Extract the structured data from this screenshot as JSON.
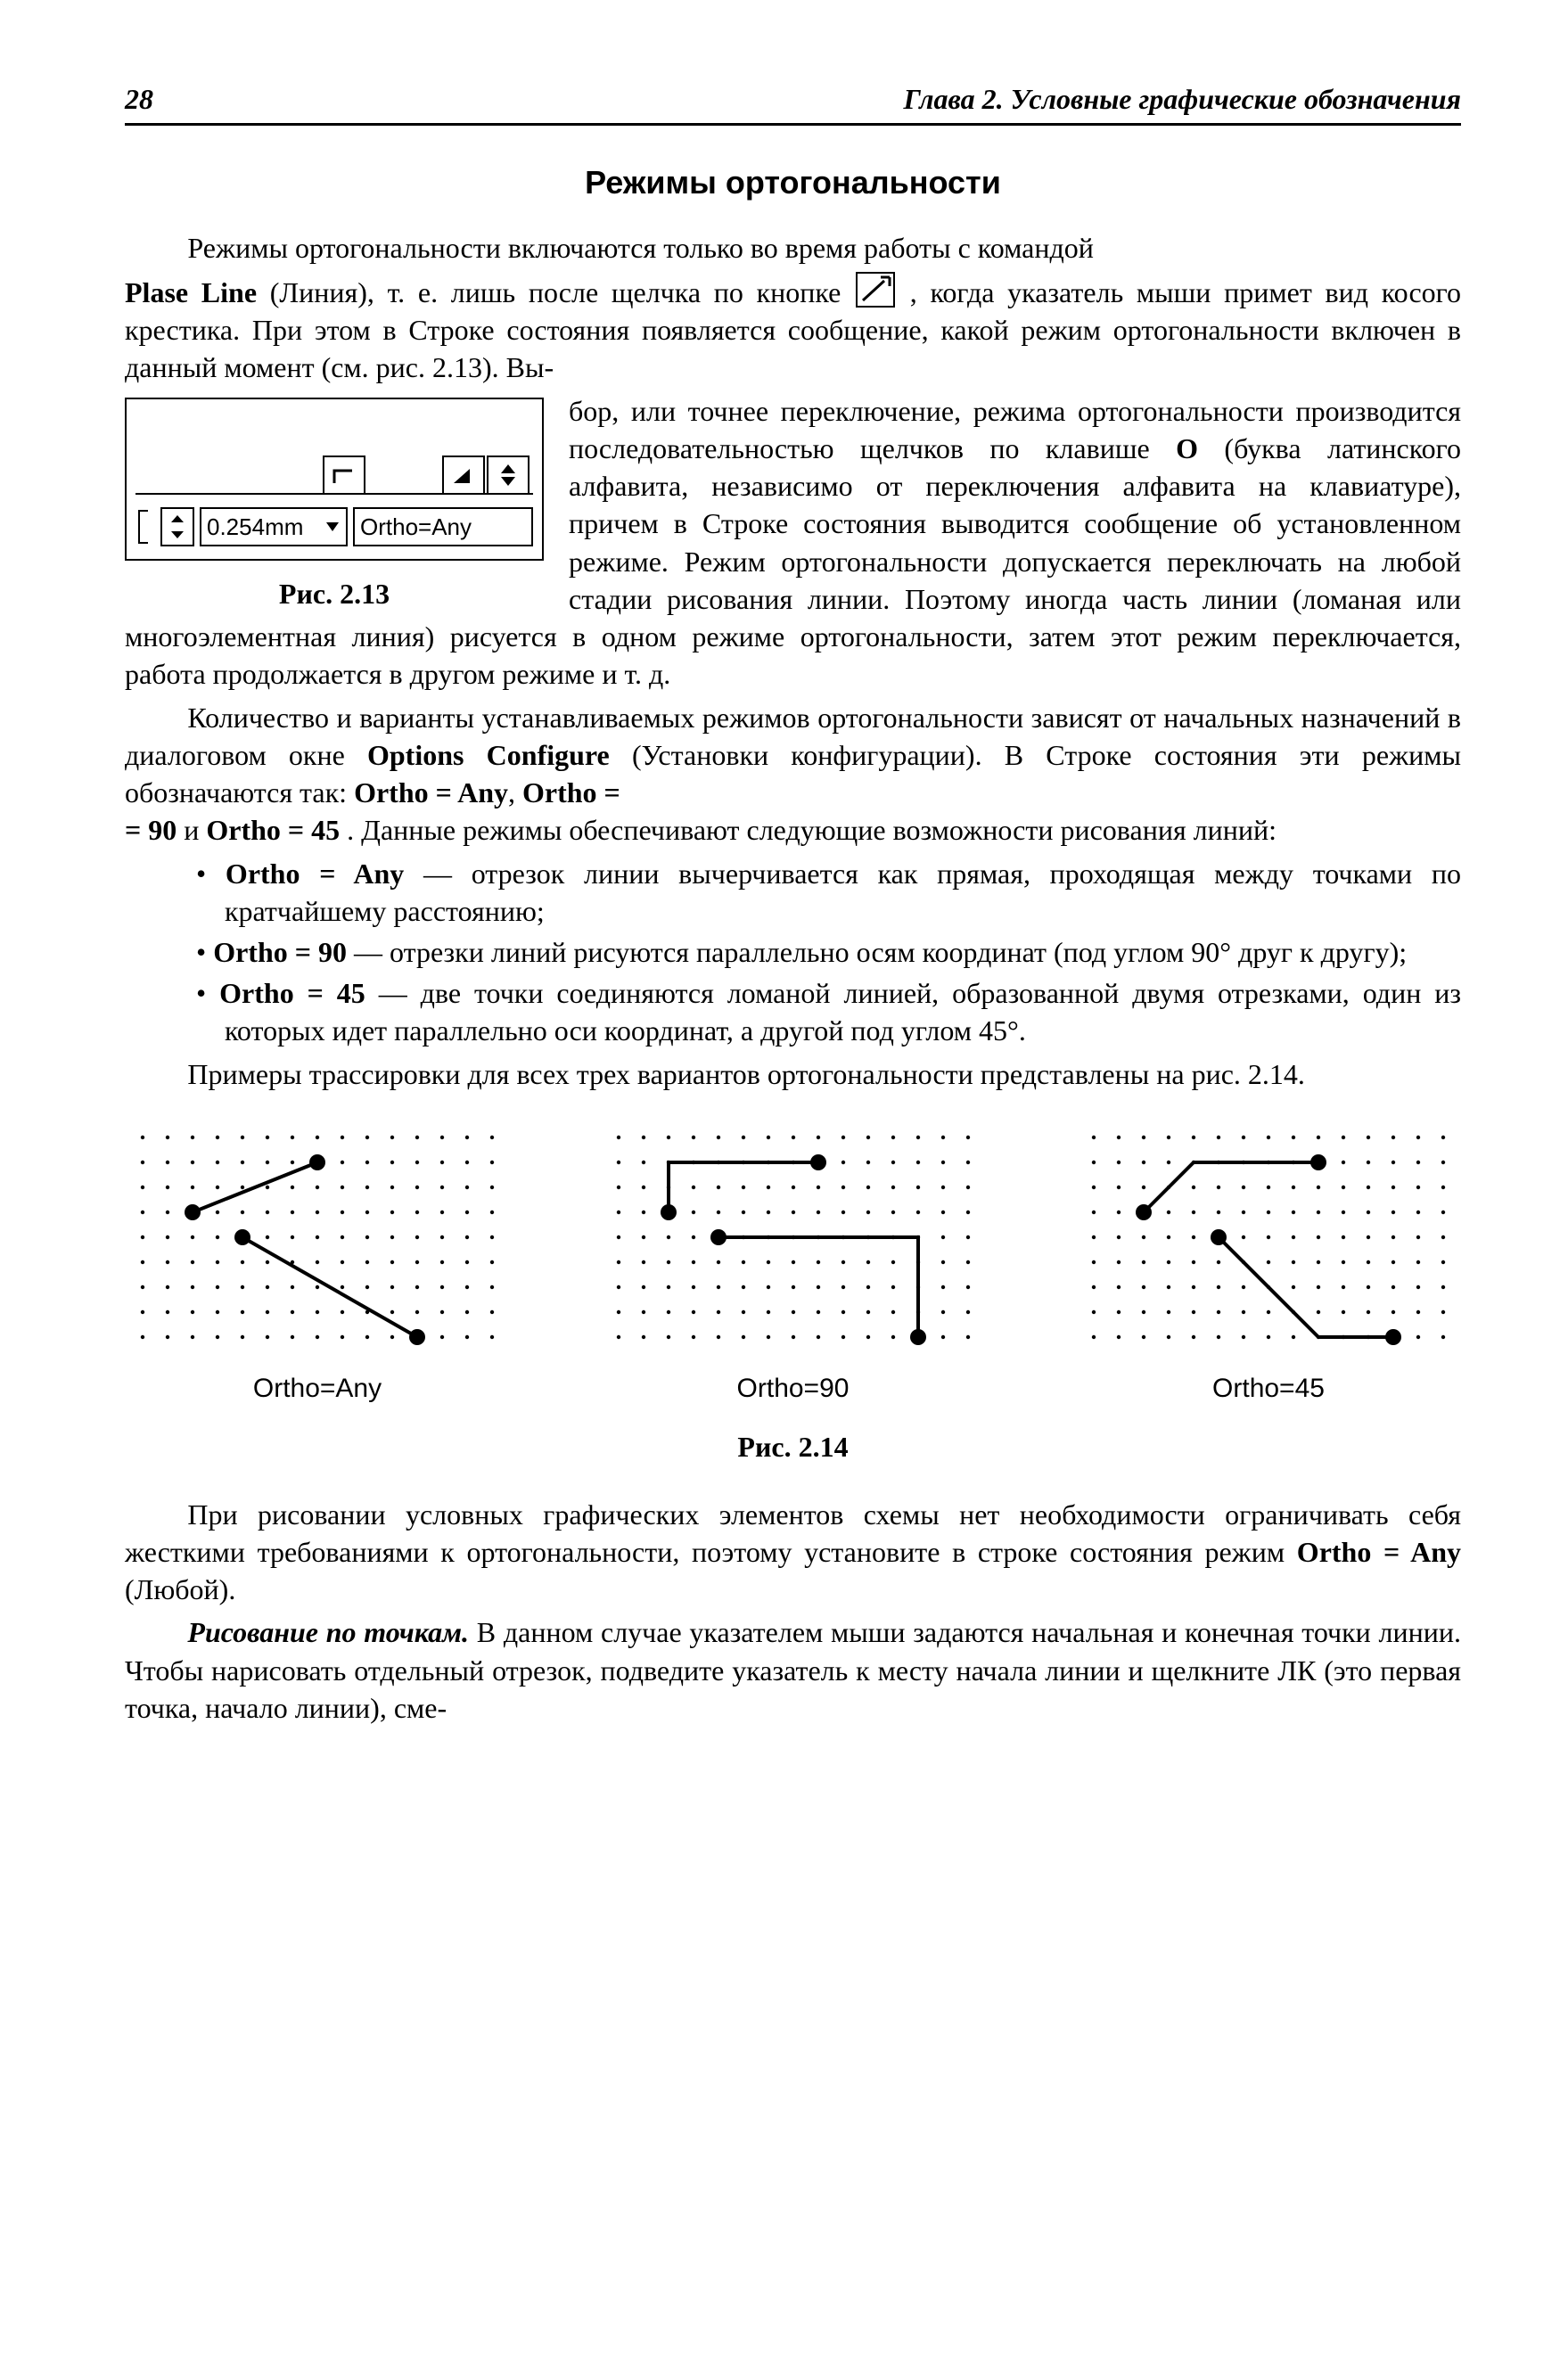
{
  "page": {
    "number": "28",
    "chapter": "Глава 2. Условные графические обозначения"
  },
  "heading": "Режимы ортогональности",
  "para1_a": "Режимы ортогональности включаются только во время работы с командой ",
  "para1_b": "Plase Line",
  "para1_c": " (Линия), т. е. лишь после щелчка по кнопке ",
  "para1_d": ", когда указатель мыши примет вид косого крестика. При этом в Строке состояния появляется сообщение, какой режим ортогональности включен в данный момент (см. рис. 2.13). Выбор, или точнее переключение, режима ортогональности производится последовательностью щелчков по клавише ",
  "para1_e": "O",
  "para1_f": " (буква латинского алфавита, независимо от переключения алфавита на клавиатуре), причем в Строке состояния выводится сообщение об установленном режиме. Режим ортогональности допускается переключать на любой стадии рисования линии. Поэтому иногда часть линии (ломаная или многоэлементная линия) рисуется в одном режиме ортогональности, затем этот режим переключается, работа продолжается в другом режиме и т. д.",
  "fig213": {
    "grid_value": "0.254mm",
    "ortho_value": "Ortho=Any",
    "caption": "Рис. 2.13",
    "icon_square": "⌐",
    "spinner_btn_stroke": "#000",
    "border_color": "#000",
    "bg": "#ffffff"
  },
  "para2_a": "Количество и варианты устанавливаемых режимов ортогональности зависят от начальных назначений в диалоговом окне ",
  "para2_b": "Options Configure",
  "para2_c": " (Установки конфигурации). В Строке состояния эти режимы обозначаются так: ",
  "m_any": "Ortho = Any",
  "m_90": "Ortho = 90",
  "m_45": "Ortho = 45",
  "para2_d": ", ",
  "para2_e": " = 90",
  "para2_f": " и ",
  "para2_g": ". Данные режимы обеспечивают следующие возможности рисования линий:",
  "bullets": {
    "b1a": "Ortho = Any",
    "b1b": " — отрезок линии вычерчивается как прямая, проходящая между точками по кратчайшему расстоянию;",
    "b2a": "Ortho = 90",
    "b2b": " — отрезки линий рисуются параллельно осям координат (под углом 90° друг к другу);",
    "b3a": "Ortho = 45",
    "b3b": " — две точки соединяются ломаной линией, образованной двумя отрезками, один из которых идет параллельно оси координат, а другой под углом 45°."
  },
  "para3": "Примеры трассировки для всех трех вариантов ортогональности представлены на рис. 2.14.",
  "fig214": {
    "caption": "Рис. 2.14",
    "labels": [
      "Ortho=Any",
      "Ortho=90",
      "Ortho=45"
    ],
    "grid": {
      "cols": 15,
      "rows": 9,
      "spacing": 28,
      "dot_radius": 2.2,
      "dot_color": "#000",
      "line_width": 4,
      "line_color": "#000",
      "node_radius": 9
    },
    "panels": [
      {
        "lines": [
          {
            "pts": [
              [
                2,
                3
              ],
              [
                7,
                1
              ]
            ]
          },
          {
            "pts": [
              [
                4,
                4
              ],
              [
                11,
                8
              ]
            ]
          }
        ],
        "nodes": [
          [
            2,
            3
          ],
          [
            7,
            1
          ],
          [
            4,
            4
          ],
          [
            11,
            8
          ]
        ]
      },
      {
        "lines": [
          {
            "pts": [
              [
                2,
                3
              ],
              [
                2,
                1
              ],
              [
                8,
                1
              ]
            ]
          },
          {
            "pts": [
              [
                4,
                4
              ],
              [
                12,
                4
              ],
              [
                12,
                8
              ]
            ]
          }
        ],
        "nodes": [
          [
            2,
            3
          ],
          [
            8,
            1
          ],
          [
            4,
            4
          ],
          [
            12,
            8
          ]
        ]
      },
      {
        "lines": [
          {
            "pts": [
              [
                2,
                3
              ],
              [
                4,
                1
              ],
              [
                9,
                1
              ]
            ]
          },
          {
            "pts": [
              [
                5,
                4
              ],
              [
                9,
                8
              ],
              [
                12,
                8
              ]
            ]
          }
        ],
        "nodes": [
          [
            2,
            3
          ],
          [
            9,
            1
          ],
          [
            5,
            4
          ],
          [
            12,
            8
          ]
        ]
      }
    ]
  },
  "para4_a": "При рисовании условных графических элементов схемы нет необходимости ограничивать себя жесткими требованиями к ортогональности, поэтому установите в строке состояния режим ",
  "para4_b": "Ortho = Any",
  "para4_c": " (Любой).",
  "para5_a": "Рисование по точкам.",
  "para5_b": " В данном случае указателем мыши задаются начальная и конечная точки линии. Чтобы нарисовать отдельный отрезок, подведите указатель к месту начала линии и щелкните ЛК (это первая точка, начало линии), сме-"
}
